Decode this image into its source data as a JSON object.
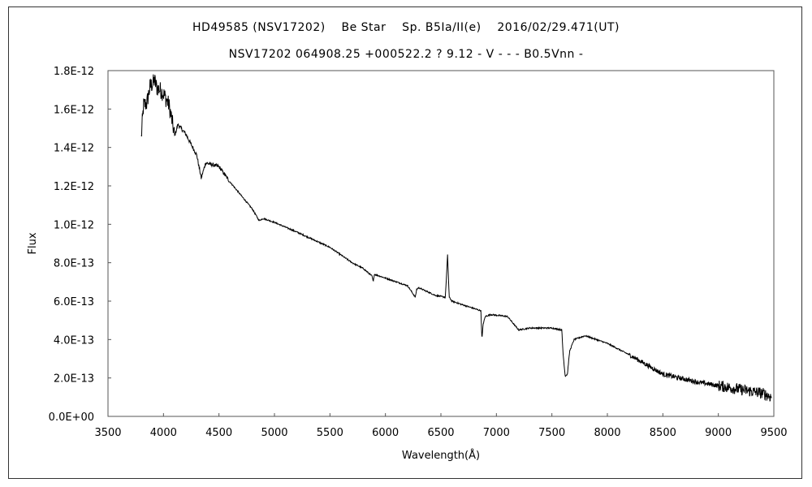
{
  "chart_data": {
    "type": "line",
    "title": "HD49585 (NSV17202)    Be Star    Sp. B5Ia/II(e)    2016/02/29.471(UT)",
    "subtitle": "NSV17202 064908.25 +000522.2 ? 9.12 - V - - - B0.5Vnn -",
    "xlabel": "Wavelength(Å)",
    "ylabel": "Flux",
    "xlim": [
      3500,
      9500
    ],
    "ylim": [
      0,
      1.8e-12
    ],
    "x_ticks": [
      3500,
      4000,
      4500,
      5000,
      5500,
      6000,
      6500,
      7000,
      7500,
      8000,
      8500,
      9000,
      9500
    ],
    "x_tick_labels": [
      "3500",
      "4000",
      "4500",
      "5000",
      "5500",
      "6000",
      "6500",
      "7000",
      "7500",
      "8000",
      "8500",
      "9000",
      "9500"
    ],
    "y_ticks": [
      0,
      2e-13,
      4e-13,
      6e-13,
      8e-13,
      1e-12,
      1.2e-12,
      1.4e-12,
      1.6e-12,
      1.8e-12
    ],
    "y_tick_labels": [
      "0.0E+00",
      "2.0E-13",
      "4.0E-13",
      "6.0E-13",
      "8.0E-13",
      "1.0E-12",
      "1.2E-12",
      "1.4E-12",
      "1.6E-12",
      "1.8E-12"
    ],
    "grid": false,
    "legend": "none",
    "line_color": "#000000",
    "series": [
      {
        "x": [
          3800,
          3820,
          3850,
          3880,
          3900,
          3920,
          3940,
          3970,
          4000,
          4050,
          4080,
          4101,
          4130,
          4200,
          4300,
          4340,
          4380,
          4500,
          4600,
          4700,
          4800,
          4861,
          4900,
          5000,
          5200,
          5500,
          5700,
          5800,
          5880,
          5890,
          5900,
          6000,
          6200,
          6270,
          6280,
          6300,
          6450,
          6540,
          6560,
          6575,
          6600,
          6700,
          6860,
          6870,
          6880,
          6900,
          6950,
          7100,
          7200,
          7300,
          7500,
          7590,
          7600,
          7620,
          7640,
          7660,
          7700,
          7800,
          8000,
          8200,
          8500,
          8800,
          9000,
          9200,
          9400,
          9480
        ],
        "y": [
          1.45e-12,
          1.62e-12,
          1.63e-12,
          1.72e-12,
          1.73e-12,
          1.75e-12,
          1.71e-12,
          1.7e-12,
          1.68e-12,
          1.62e-12,
          1.53e-12,
          1.46e-12,
          1.52e-12,
          1.47e-12,
          1.36e-12,
          1.24e-12,
          1.32e-12,
          1.3e-12,
          1.22e-12,
          1.15e-12,
          1.08e-12,
          1.02e-12,
          1.03e-12,
          1.01e-12,
          9.6e-13,
          8.8e-13,
          8e-13,
          7.7e-13,
          7.3e-13,
          7e-13,
          7.4e-13,
          7.2e-13,
          6.8e-13,
          6.2e-13,
          6.6e-13,
          6.7e-13,
          6.3e-13,
          6.2e-13,
          8.4e-13,
          6.2e-13,
          6e-13,
          5.8e-13,
          5.5e-13,
          4e-13,
          4.8e-13,
          5.2e-13,
          5.3e-13,
          5.2e-13,
          4.5e-13,
          4.6e-13,
          4.6e-13,
          4.5e-13,
          3.3e-13,
          2.1e-13,
          2.2e-13,
          3.4e-13,
          4e-13,
          4.2e-13,
          3.8e-13,
          3.2e-13,
          2.2e-13,
          1.8e-13,
          1.6e-13,
          1.4e-13,
          1.2e-13,
          1e-13
        ]
      }
    ]
  }
}
